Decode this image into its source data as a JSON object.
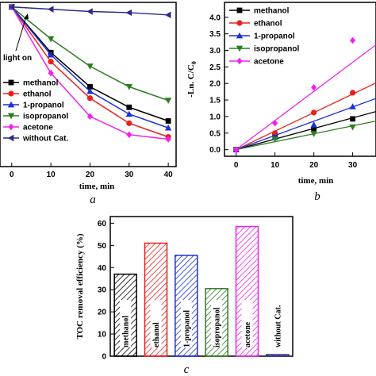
{
  "chart_data": [
    {
      "type": "line",
      "panel": "a",
      "xlabel": "time, min",
      "ylabel": "",
      "x": [
        0,
        10,
        20,
        30,
        40
      ],
      "xlim": [
        -3,
        42
      ],
      "ylim": [
        0.3,
        1.02
      ],
      "x_ticks": [
        "0",
        "10",
        "20",
        "30",
        "40"
      ],
      "annotation": "light on",
      "series": [
        {
          "name": "methanol",
          "color": "#000000",
          "marker": "square",
          "values": [
            1.0,
            0.8,
            0.65,
            0.56,
            0.5
          ]
        },
        {
          "name": "ethanol",
          "color": "#e8201c",
          "marker": "circle",
          "values": [
            1.0,
            0.76,
            0.6,
            0.49,
            0.43
          ]
        },
        {
          "name": "1-propanol",
          "color": "#1c2fd8",
          "marker": "triangle-up",
          "values": [
            1.0,
            0.79,
            0.63,
            0.53,
            0.47
          ]
        },
        {
          "name": "isopropanol",
          "color": "#2e7d21",
          "marker": "triangle-down",
          "values": [
            1.0,
            0.86,
            0.74,
            0.65,
            0.59
          ]
        },
        {
          "name": "acetone",
          "color": "#ee22ee",
          "marker": "diamond",
          "values": [
            1.0,
            0.71,
            0.52,
            0.44,
            0.42
          ]
        },
        {
          "name": "without Cat.",
          "color": "#2a2a8a",
          "marker": "left-triangle",
          "values": [
            1.0,
            0.99,
            0.98,
            0.975,
            0.965
          ]
        }
      ]
    },
    {
      "type": "scatter",
      "panel": "b",
      "xlabel": "time, min",
      "ylabel": "-Ln. C/C",
      "ylabel_sub": "0",
      "x": [
        0,
        10,
        20,
        30
      ],
      "xlim": [
        -3,
        36
      ],
      "ylim": [
        -0.2,
        4.45
      ],
      "x_ticks": [
        "0",
        "10",
        "20",
        "30"
      ],
      "y_ticks": [
        "0.0",
        "0.5",
        "1.0",
        "1.5",
        "2.0",
        "2.5",
        "3.0",
        "3.5",
        "4.0"
      ],
      "series": [
        {
          "name": "methanol",
          "color": "#000000",
          "marker": "square",
          "values": [
            0,
            0.45,
            0.62,
            0.93
          ],
          "slope": 0.032
        },
        {
          "name": "ethanol",
          "color": "#e8201c",
          "marker": "circle",
          "values": [
            0,
            0.5,
            1.12,
            1.72
          ],
          "slope": 0.056
        },
        {
          "name": "1-propanol",
          "color": "#1c2fd8",
          "marker": "triangle-up",
          "values": [
            0,
            0.38,
            0.75,
            1.3
          ],
          "slope": 0.043
        },
        {
          "name": "isopropanol",
          "color": "#2e7d21",
          "marker": "triangle-down",
          "values": [
            0,
            0.32,
            0.48,
            0.68
          ],
          "slope": 0.024
        },
        {
          "name": "acetone",
          "color": "#ee22ee",
          "marker": "diamond",
          "values": [
            0,
            0.8,
            1.88,
            3.3
          ],
          "slope": 0.088
        }
      ]
    },
    {
      "type": "bar",
      "panel": "c",
      "ylabel": "TOC removal efficiency (%)",
      "ylim": [
        0,
        63
      ],
      "y_ticks": [
        "0",
        "10",
        "20",
        "30",
        "40",
        "50",
        "60"
      ],
      "categories": [
        "methanol",
        "ethanol",
        "1-propanol",
        "isopropanol",
        "acetone",
        "without Cat."
      ],
      "values": [
        37,
        51,
        45.5,
        30.5,
        58.5,
        0.7
      ],
      "colors": [
        "#000000",
        "#e8201c",
        "#1c2fd8",
        "#2e7d21",
        "#ee22ee",
        "#2a2a8a"
      ]
    }
  ]
}
